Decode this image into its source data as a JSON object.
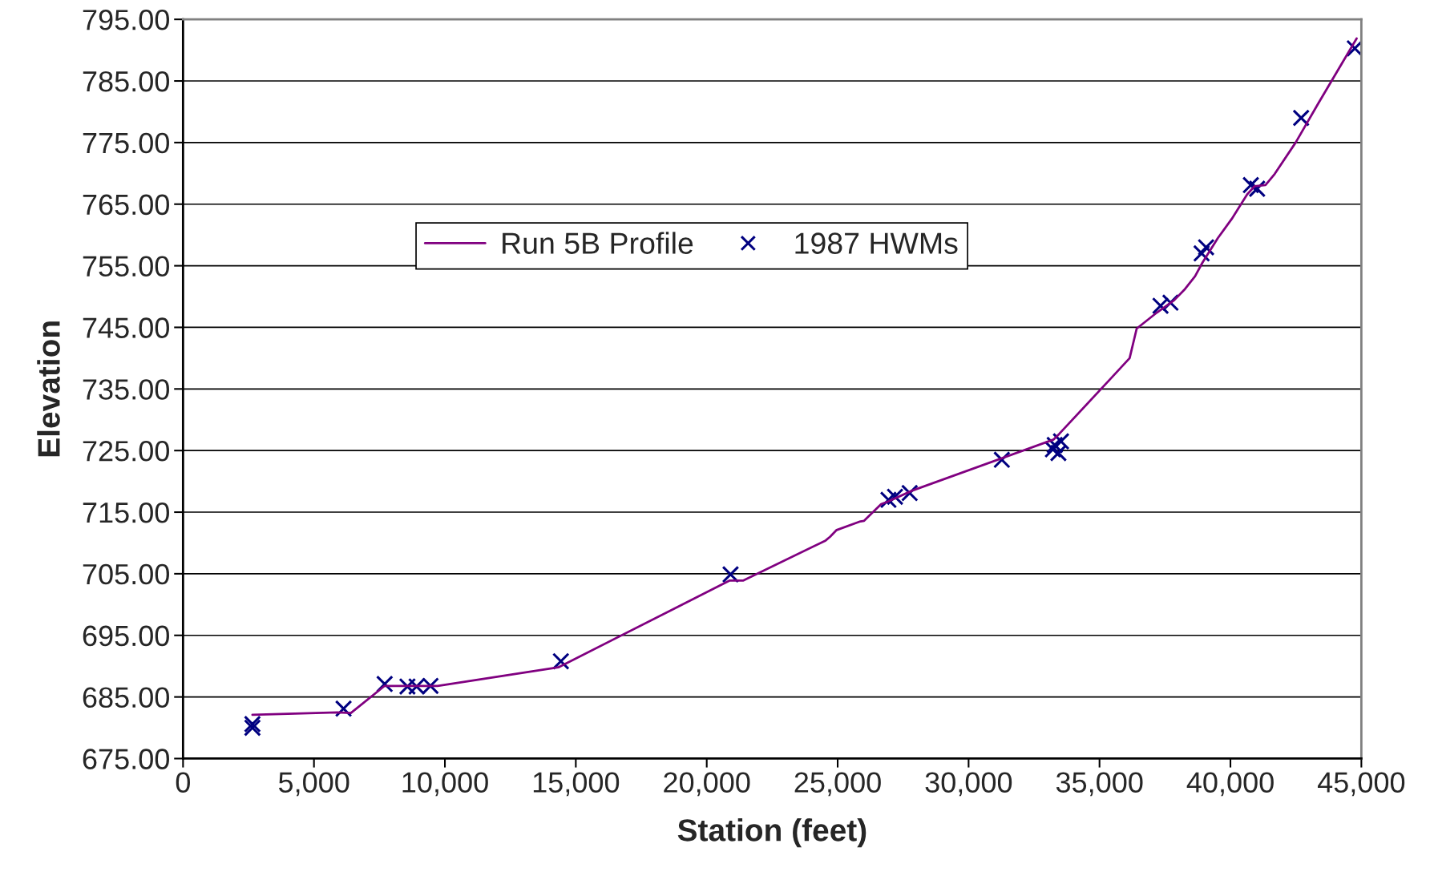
{
  "chart_data": {
    "type": "line",
    "xlabel": "Station (feet)",
    "ylabel": "Elevation",
    "xlim": [
      0,
      45000
    ],
    "xticks": [
      0,
      {
        "value": 5000,
        "label": "5,000"
      },
      {
        "value": 10000,
        "label": "10,000"
      },
      {
        "value": 15000,
        "label": "15,000"
      },
      {
        "value": 20000,
        "label": "20,000"
      },
      {
        "value": 25000,
        "label": "25,000"
      },
      {
        "value": 30000,
        "label": "30,000"
      },
      {
        "value": 35000,
        "label": "35,000"
      },
      {
        "value": 40000,
        "label": "40,000"
      },
      {
        "value": 45000,
        "label": "45,000"
      }
    ],
    "ylim": [
      675,
      795
    ],
    "yticks": [
      {
        "value": 675,
        "label": "675.00"
      },
      {
        "value": 685,
        "label": "685.00"
      },
      {
        "value": 695,
        "label": "695.00"
      },
      {
        "value": 705,
        "label": "705.00"
      },
      {
        "value": 715,
        "label": "715.00"
      },
      {
        "value": 725,
        "label": "725.00"
      },
      {
        "value": 735,
        "label": "735.00"
      },
      {
        "value": 745,
        "label": "745.00"
      },
      {
        "value": 755,
        "label": "755.00"
      },
      {
        "value": 765,
        "label": "765.00"
      },
      {
        "value": 775,
        "label": "775.00"
      },
      {
        "value": 785,
        "label": "785.00"
      },
      {
        "value": 795,
        "label": "795.00"
      }
    ],
    "grid": "y",
    "legend": "top left",
    "series": [
      {
        "name": "Run 5B Profile",
        "color": "#800080",
        "marker": "none",
        "line_style": "solid",
        "x": [
          2650,
          5890,
          6410,
          7700,
          9720,
          14330,
          20880,
          21400,
          24540,
          24710,
          24960,
          25870,
          26010,
          26660,
          26910,
          27850,
          33250,
          33460,
          35520,
          36150,
          36420,
          37190,
          37850,
          38240,
          38650,
          38930,
          39520,
          40050,
          40640,
          40920,
          41340,
          41690,
          42490,
          43360,
          44820
        ],
        "values": [
          682.1,
          682.5,
          682.4,
          686.8,
          686.8,
          689.8,
          703.9,
          703.9,
          710.4,
          711.0,
          712.1,
          713.5,
          713.6,
          716.3,
          716.7,
          718.5,
          726.8,
          727.7,
          737.1,
          740.0,
          744.8,
          747.4,
          749.4,
          751.1,
          753.3,
          755.5,
          759.5,
          762.6,
          766.6,
          767.9,
          768.1,
          769.9,
          775.0,
          781.4,
          791.9
        ]
      },
      {
        "name": "1987 HWMs",
        "type": "scatter",
        "color": "#000080",
        "marker": "cross",
        "x": [
          2650,
          2650,
          6130,
          7700,
          8570,
          8920,
          9450,
          14430,
          20910,
          26940,
          27190,
          27750,
          31270,
          33220,
          33290,
          33430,
          33530,
          37330,
          37710,
          38900,
          39070,
          40780,
          41020,
          42700,
          44750
        ],
        "values": [
          680.6,
          680.0,
          683.1,
          687.1,
          686.7,
          686.7,
          686.8,
          690.8,
          704.9,
          717.0,
          717.5,
          718.1,
          723.5,
          725.2,
          725.9,
          724.6,
          726.5,
          748.5,
          749.0,
          757.0,
          758.0,
          768.1,
          767.5,
          779.0,
          790.3
        ]
      }
    ]
  }
}
